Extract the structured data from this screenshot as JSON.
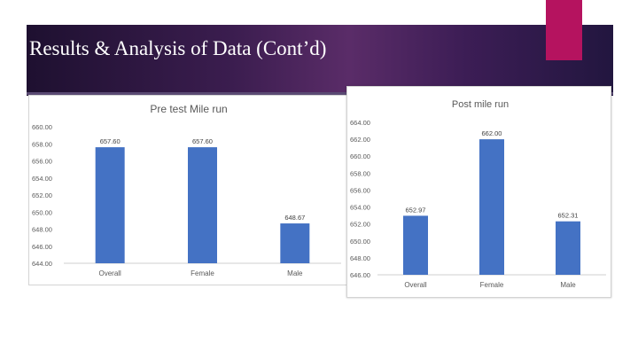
{
  "slide": {
    "title": "Results & Analysis of Data (Cont’d)",
    "colors": {
      "banner": "#3b1d4f",
      "accent": "#b5135f",
      "bar": "#4472c4"
    }
  },
  "chart_data": [
    {
      "type": "bar",
      "title": "Pre test Mile run",
      "categories": [
        "Overall",
        "Female",
        "Male"
      ],
      "values": [
        657.6,
        657.6,
        648.67
      ],
      "data_labels": [
        "657.60",
        "657.60",
        "648.67"
      ],
      "y_ticks": [
        "660.00",
        "658.00",
        "656.00",
        "654.00",
        "652.00",
        "650.00",
        "648.00",
        "646.00",
        "644.00"
      ],
      "ylim": [
        644,
        660
      ],
      "grid": false,
      "legend": "none"
    },
    {
      "type": "bar",
      "title": "Post mile run",
      "categories": [
        "Overall",
        "Female",
        "Male"
      ],
      "values": [
        652.97,
        662.0,
        652.31
      ],
      "data_labels": [
        "652.97",
        "662.00",
        "652.31"
      ],
      "y_ticks": [
        "664.00",
        "662.00",
        "660.00",
        "658.00",
        "656.00",
        "654.00",
        "652.00",
        "650.00",
        "648.00",
        "646.00"
      ],
      "ylim": [
        646,
        664
      ],
      "grid": false,
      "legend": "none"
    }
  ]
}
